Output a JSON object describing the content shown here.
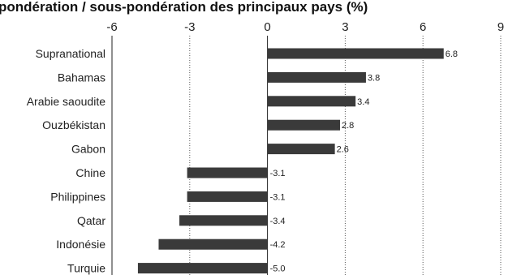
{
  "chart_data": {
    "type": "bar",
    "orientation": "horizontal",
    "title": "pondération / sous-pondération des principaux pays (%)",
    "categories": [
      "Supranational",
      "Bahamas",
      "Arabie saoudite",
      "Ouzbékistan",
      "Gabon",
      "Chine",
      "Philippines",
      "Qatar",
      "Indonésie",
      "Turquie"
    ],
    "values": [
      6.8,
      3.8,
      3.4,
      2.8,
      2.6,
      -3.1,
      -3.1,
      -3.4,
      -4.2,
      -5.0
    ],
    "value_labels": [
      "6.8",
      "3.8",
      "3.4",
      "2.8",
      "2.6",
      "-3.1",
      "-3.1",
      "-3.4",
      "-4.2",
      "-5.0"
    ],
    "xlim": [
      -6,
      9
    ],
    "xticks": [
      -6,
      -3,
      0,
      3,
      6,
      9
    ],
    "xtick_labels": [
      "-6",
      "-3",
      "0",
      "3",
      "6",
      "9"
    ],
    "grid": "vertical dotted",
    "bar_color": "#3a3a3a"
  }
}
